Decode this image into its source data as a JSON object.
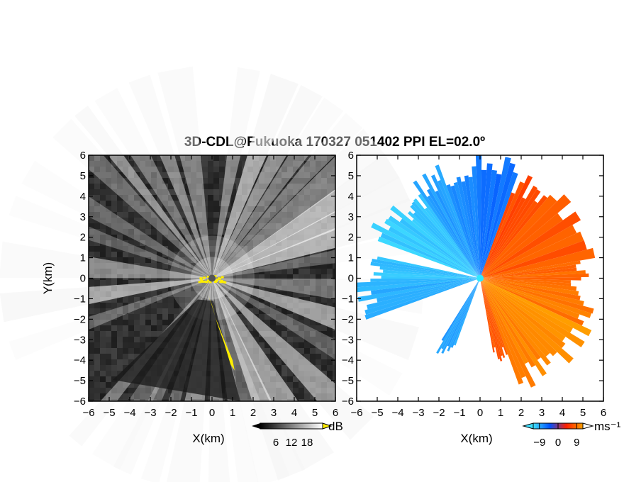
{
  "title": "3D-CDL@Fukuoka 170327 051402 PPI EL=02.0º",
  "chart_data": [
    {
      "type": "heatmap",
      "name": "reflectivity",
      "xlabel": "X(km)",
      "ylabel": "Y(km)",
      "xlim": [
        -6,
        6
      ],
      "ylim": [
        -6,
        6
      ],
      "xticks": [
        -6,
        -5,
        -4,
        -3,
        -2,
        -1,
        0,
        1,
        2,
        3,
        4,
        5,
        6
      ],
      "yticks": [
        -6,
        -5,
        -4,
        -3,
        -2,
        -1,
        0,
        1,
        2,
        3,
        4,
        5,
        6
      ],
      "colorbar": {
        "unit": "dB",
        "ticks": [
          6,
          12,
          18
        ],
        "colors": [
          "#000000",
          "#ffffff"
        ],
        "overflow_color": "#ffee00"
      },
      "site": [
        0,
        0
      ],
      "beams_deg": [
        10,
        20,
        28,
        35,
        42,
        50,
        58,
        65,
        72,
        80,
        95,
        108,
        120,
        135,
        150,
        158,
        163,
        170,
        178,
        188,
        197,
        205,
        210,
        220,
        250,
        262,
        275,
        290,
        300,
        315,
        322,
        330,
        340,
        350
      ]
    },
    {
      "type": "heatmap",
      "name": "doppler velocity",
      "xlabel": "X(km)",
      "ylabel": "",
      "xlim": [
        -6,
        6
      ],
      "ylim": [
        -6,
        6
      ],
      "xticks": [
        -6,
        -5,
        -4,
        -3,
        -2,
        -1,
        0,
        1,
        2,
        3,
        4,
        5,
        6
      ],
      "yticks": [
        -6,
        -5,
        -4,
        -3,
        -2,
        -1,
        0,
        1,
        2,
        3,
        4,
        5,
        6
      ],
      "colorbar": {
        "unit": "ms⁻¹",
        "ticks": [
          -9,
          0,
          9
        ],
        "colors": [
          "#40e0ff",
          "#0050ff",
          "#ff2000",
          "#ffa000"
        ]
      },
      "site": [
        0,
        0
      ],
      "sectors": [
        {
          "from_deg": 20,
          "to_deg": 40,
          "range_km": 5.2,
          "velocity": 3
        },
        {
          "from_deg": 40,
          "to_deg": 80,
          "range_km": 5.5,
          "velocity": 4
        },
        {
          "from_deg": 80,
          "to_deg": 95,
          "range_km": 5.0,
          "velocity": 5
        },
        {
          "from_deg": 95,
          "to_deg": 115,
          "range_km": 5.4,
          "velocity": 6
        },
        {
          "from_deg": 115,
          "to_deg": 140,
          "range_km": 5.8,
          "velocity": 8
        },
        {
          "from_deg": 140,
          "to_deg": 160,
          "range_km": 5.5,
          "velocity": 7
        },
        {
          "from_deg": 160,
          "to_deg": 170,
          "range_km": 4.0,
          "velocity": 4
        },
        {
          "from_deg": 200,
          "to_deg": 212,
          "range_km": 4.0,
          "velocity": -5
        },
        {
          "from_deg": 250,
          "to_deg": 268,
          "range_km": 6.0,
          "velocity": -6
        },
        {
          "from_deg": 268,
          "to_deg": 282,
          "range_km": 5.5,
          "velocity": -7
        },
        {
          "from_deg": 290,
          "to_deg": 310,
          "range_km": 5.5,
          "velocity": -8
        },
        {
          "from_deg": 310,
          "to_deg": 325,
          "range_km": 5.0,
          "velocity": -7
        },
        {
          "from_deg": 325,
          "to_deg": 340,
          "range_km": 5.5,
          "velocity": -5
        },
        {
          "from_deg": 340,
          "to_deg": 358,
          "range_km": 5.5,
          "velocity": -4
        },
        {
          "from_deg": 358,
          "to_deg": 380,
          "range_km": 5.8,
          "velocity": -2
        }
      ]
    }
  ]
}
